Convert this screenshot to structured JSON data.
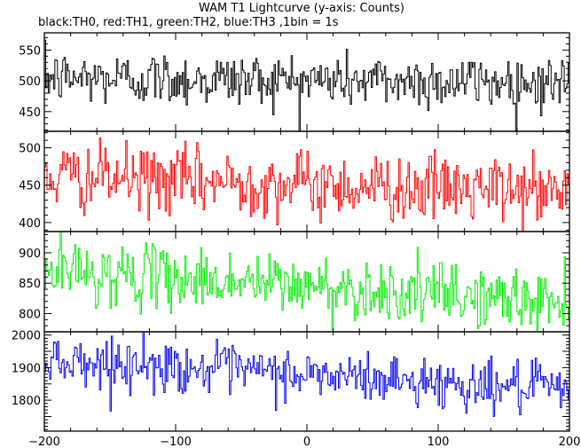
{
  "figure": {
    "title": "WAM T1 Lightcurve (y-axis: Counts)",
    "subtitle": "black:TH0, red:TH1, green:TH2, blue:TH3 ,1bin = 1s"
  },
  "chart_data": [
    {
      "type": "line",
      "series": [
        {
          "name": "TH0",
          "color": "#000000",
          "mean": 500,
          "std": 22,
          "trend": [
            505,
            497
          ]
        }
      ],
      "xlim": [
        -200,
        200
      ],
      "ylim": [
        418,
        578
      ],
      "yticks": [
        450,
        500,
        550
      ],
      "xticks": [
        -200,
        -100,
        0,
        100,
        200
      ],
      "xlabel": "",
      "ylabel": "",
      "grid": false
    },
    {
      "type": "line",
      "series": [
        {
          "name": "TH1",
          "color": "#ff0000",
          "mean": 452,
          "std": 22,
          "trend": [
            462,
            440
          ]
        }
      ],
      "xlim": [
        -200,
        200
      ],
      "ylim": [
        388,
        522
      ],
      "yticks": [
        400,
        450,
        500
      ],
      "xticks": [
        -200,
        -100,
        0,
        100,
        200
      ],
      "xlabel": "",
      "ylabel": "",
      "grid": false
    },
    {
      "type": "line",
      "series": [
        {
          "name": "TH2",
          "color": "#00ee00",
          "mean": 840,
          "std": 25,
          "trend": [
            872,
            818
          ]
        }
      ],
      "xlim": [
        -200,
        200
      ],
      "ylim": [
        770,
        935
      ],
      "yticks": [
        800,
        850,
        900
      ],
      "xticks": [
        -200,
        -100,
        0,
        100,
        200
      ],
      "xlabel": "",
      "ylabel": "",
      "grid": false
    },
    {
      "type": "line",
      "series": [
        {
          "name": "TH3",
          "color": "#0000ee",
          "mean": 1875,
          "std": 38,
          "trend": [
            1925,
            1830
          ]
        }
      ],
      "xlim": [
        -200,
        200
      ],
      "ylim": [
        1705,
        2010
      ],
      "yticks": [
        1800,
        1900,
        2000
      ],
      "xticks": [
        -200,
        -100,
        0,
        100,
        200
      ],
      "xlabel": "",
      "ylabel": "",
      "grid": false
    }
  ]
}
